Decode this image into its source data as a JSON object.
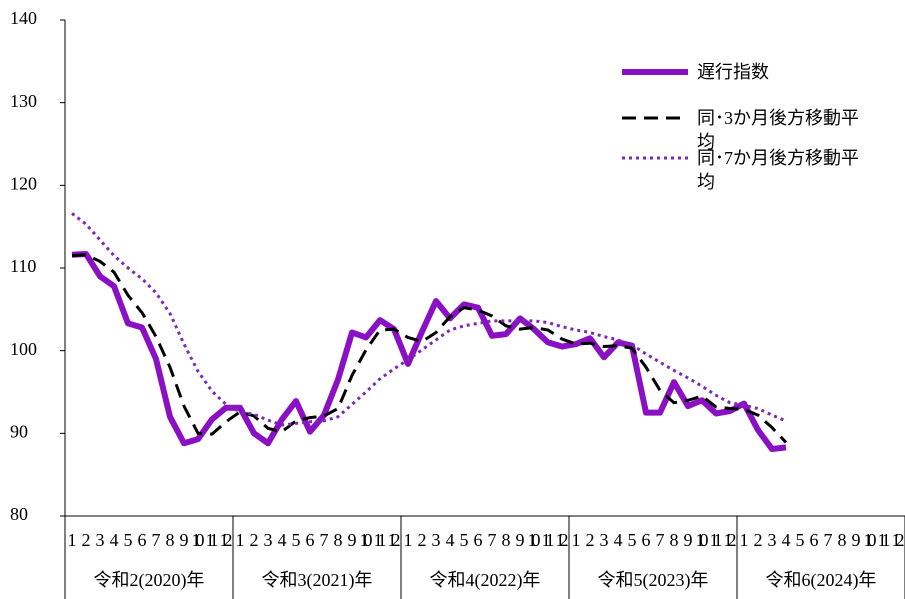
{
  "chart_data": {
    "type": "line",
    "categories": [
      "1",
      "2",
      "3",
      "4",
      "5",
      "6",
      "7",
      "8",
      "9",
      "10",
      "11",
      "12",
      "1",
      "2",
      "3",
      "4",
      "5",
      "6",
      "7",
      "8",
      "9",
      "10",
      "11",
      "12",
      "1",
      "2",
      "3",
      "4",
      "5",
      "6",
      "7",
      "8",
      "9",
      "10",
      "11",
      "12",
      "1",
      "2",
      "3",
      "4",
      "5",
      "6",
      "7",
      "8",
      "9",
      "10",
      "11",
      "12",
      "1",
      "2",
      "3",
      "4",
      "5",
      "6",
      "7",
      "8",
      "9",
      "10",
      "11",
      "12"
    ],
    "groups": [
      "令和2(2020)年",
      "令和3(2021)年",
      "令和4(2022)年",
      "令和5(2023)年",
      "令和6(2024)年"
    ],
    "ylim": [
      80,
      140
    ],
    "yticks": [
      80,
      90,
      100,
      110,
      120,
      130,
      140
    ],
    "grid": false,
    "series": [
      {
        "name": "遅行指数",
        "color": "#8a10c4",
        "style": "solid",
        "values": [
          111.6,
          111.7,
          109,
          107.8,
          103.3,
          102.8,
          99,
          92,
          88.8,
          89.3,
          91.7,
          93.1,
          93.1,
          90,
          88.8,
          91.7,
          93.9,
          90.2,
          92.2,
          96.5,
          102.2,
          101.6,
          103.7,
          102.6,
          98.4,
          102.3,
          106,
          103.9,
          105.6,
          105.2,
          101.8,
          102,
          103.9,
          102.6,
          101,
          100.5,
          100.8,
          101.5,
          99.2,
          101,
          100.6,
          92.5,
          92.5,
          96.2,
          93.3,
          94,
          92.4,
          92.7,
          93.6,
          90.4,
          88.1,
          88.3,
          null,
          null,
          null,
          null,
          null,
          null,
          null,
          null
        ]
      },
      {
        "name": "同･3か月後方移動平均",
        "color": "#000000",
        "style": "dashed",
        "values": [
          111.5,
          111.6,
          110.8,
          109.5,
          106.7,
          104.6,
          101.7,
          98,
          93.3,
          90,
          89.9,
          91.4,
          92.6,
          92.1,
          90.6,
          90.2,
          91.5,
          91.9,
          92.1,
          93,
          97,
          100.1,
          102.5,
          102.6,
          101.6,
          101.1,
          102.2,
          104.1,
          105.2,
          104.9,
          104.2,
          103,
          102.6,
          102.8,
          102.5,
          101.4,
          100.8,
          100.9,
          100.5,
          100.6,
          100.3,
          98,
          95.2,
          93.7,
          94,
          94.5,
          93.2,
          93,
          92.9,
          92.2,
          90.7,
          88.9,
          null,
          null,
          null,
          null,
          null,
          null,
          null,
          null
        ]
      },
      {
        "name": "同･7か月後方移動平均",
        "color": "#7a2ab4",
        "style": "dotted",
        "values": [
          116.6,
          115.3,
          113.4,
          111.5,
          110,
          108.7,
          107,
          104.5,
          100.8,
          97.5,
          95.1,
          93.5,
          92.6,
          92.3,
          91.6,
          91,
          91.2,
          91.4,
          91.5,
          92,
          93.5,
          95,
          96.6,
          97.8,
          98.9,
          100.1,
          101.3,
          102.5,
          103,
          103.3,
          103.6,
          103.6,
          103.6,
          103.6,
          103.4,
          102.9,
          102.5,
          102.2,
          101.7,
          101.3,
          100.7,
          99.6,
          98.6,
          97.6,
          96.7,
          95.7,
          94.6,
          93.7,
          93.4,
          93,
          92.2,
          91.5,
          null,
          null,
          null,
          null,
          null,
          null,
          null,
          null
        ]
      }
    ]
  }
}
